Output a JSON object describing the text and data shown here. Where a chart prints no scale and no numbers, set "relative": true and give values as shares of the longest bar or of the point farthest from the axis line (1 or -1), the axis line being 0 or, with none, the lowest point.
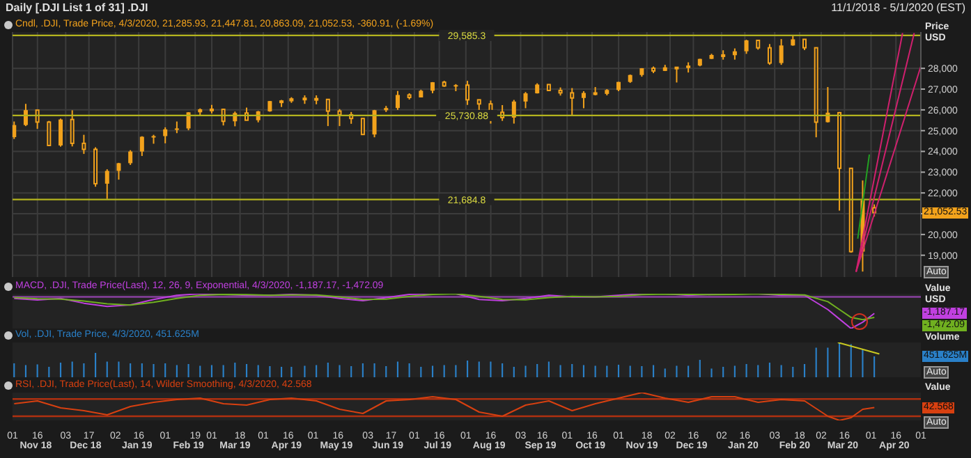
{
  "chart_data": [
    {
      "type": "candlestick",
      "title": "Daily [.DJI List 1 of 31] .DJI",
      "subtitle": "11/1/2018 - 5/1/2020 (EST)",
      "ylabel": "Price USD",
      "xlim": [
        "2018-11-01",
        "2020-05-01"
      ],
      "xticks": [
        {
          "value": "2018-11-01",
          "label": null
        },
        {
          "value": "2018-11-16",
          "label": null
        },
        {
          "value": "2018-12-03",
          "label": null
        },
        {
          "value": "2018-12-17",
          "label": null
        },
        {
          "value": "2019-01-02",
          "label": null
        },
        {
          "value": "2019-01-16",
          "label": null
        },
        {
          "value": "2019-02-01",
          "label": null
        },
        {
          "value": "2019-02-19",
          "label": null
        },
        {
          "value": "2019-03-01",
          "label": null
        },
        {
          "value": "2019-03-18",
          "label": null
        },
        {
          "value": "2019-04-01",
          "label": null
        },
        {
          "value": "2019-04-16",
          "label": null
        },
        {
          "value": "2019-05-01",
          "label": null
        },
        {
          "value": "2019-05-16",
          "label": null
        },
        {
          "value": "2019-06-03",
          "label": null
        },
        {
          "value": "2019-06-17",
          "label": null
        },
        {
          "value": "2019-07-01",
          "label": null
        },
        {
          "value": "2019-07-16",
          "label": null
        },
        {
          "value": "2019-08-01",
          "label": null
        },
        {
          "value": "2019-08-16",
          "label": null
        },
        {
          "value": "2019-09-03",
          "label": null
        },
        {
          "value": "2019-09-16",
          "label": null
        },
        {
          "value": "2019-10-01",
          "label": null
        },
        {
          "value": "2019-10-16",
          "label": null
        },
        {
          "value": "2019-11-01",
          "label": null
        },
        {
          "value": "2019-11-18",
          "label": null
        },
        {
          "value": "2019-12-02",
          "label": null
        },
        {
          "value": "2019-12-16",
          "label": null
        },
        {
          "value": "2020-01-02",
          "label": null
        },
        {
          "value": "2020-01-16",
          "label": null
        },
        {
          "value": "2020-02-03",
          "label": null
        },
        {
          "value": "2020-02-18",
          "label": null
        },
        {
          "value": "2020-03-02",
          "label": null
        },
        {
          "value": "2020-03-16",
          "label": null
        },
        {
          "value": "2020-04-01",
          "label": null
        },
        {
          "value": "2020-04-16",
          "label": null
        },
        {
          "value": "2020-05-01",
          "label": null
        }
      ],
      "ylim": [
        17950,
        29750
      ],
      "yticks": [
        {
          "value": 19000,
          "label": "19,000"
        },
        {
          "value": 20000,
          "label": "20,000"
        },
        {
          "value": 21000,
          "label": null
        },
        {
          "value": 22000,
          "label": "22,000"
        },
        {
          "value": 23000,
          "label": "23,000"
        },
        {
          "value": 24000,
          "label": "24,000"
        },
        {
          "value": 25000,
          "label": "25,000"
        },
        {
          "value": 26000,
          "label": "26,000"
        },
        {
          "value": 27000,
          "label": "27,000"
        },
        {
          "value": 28000,
          "label": "28,000"
        }
      ],
      "grid": true,
      "legend": "top left",
      "tick_labels": "y",
      "ref_lines": [
        {
          "axis": "y",
          "value": 29585.3,
          "label": "29,585.3",
          "color": "#b4b41e"
        },
        {
          "axis": "y",
          "value": 25730.88,
          "label": "25,730.88",
          "color": "#b4b41e"
        },
        {
          "axis": "y",
          "value": 21684.8,
          "label": "21,684.8",
          "color": "#b4b41e"
        }
      ],
      "annotations": [
        "Auto",
        "Auto",
        "Auto"
      ],
      "series": [
        {
          "name": "Cndl, .DJI, Trade Price, 4/3/2020, 21,285.93, 21,447.81, 20,863.09, 21,052.53, -360.91, (-1.69%)",
          "color": "#f2a21c",
          "x": [
            "2018-11-02",
            "2018-11-09",
            "2018-11-16",
            "2018-11-23",
            "2018-11-30",
            "2018-12-07",
            "2018-12-14",
            "2018-12-21",
            "2018-12-28",
            "2019-01-04",
            "2019-01-11",
            "2019-01-18",
            "2019-01-25",
            "2019-02-01",
            "2019-02-08",
            "2019-02-15",
            "2019-02-22",
            "2019-03-01",
            "2019-03-08",
            "2019-03-15",
            "2019-03-22",
            "2019-03-29",
            "2019-04-05",
            "2019-04-12",
            "2019-04-18",
            "2019-04-26",
            "2019-05-03",
            "2019-05-10",
            "2019-05-17",
            "2019-05-24",
            "2019-05-31",
            "2019-06-07",
            "2019-06-14",
            "2019-06-21",
            "2019-06-28",
            "2019-07-05",
            "2019-07-12",
            "2019-07-19",
            "2019-07-26",
            "2019-08-02",
            "2019-08-09",
            "2019-08-16",
            "2019-08-23",
            "2019-08-30",
            "2019-09-06",
            "2019-09-13",
            "2019-09-20",
            "2019-09-27",
            "2019-10-04",
            "2019-10-11",
            "2019-10-18",
            "2019-10-25",
            "2019-11-01",
            "2019-11-08",
            "2019-11-15",
            "2019-11-22",
            "2019-11-29",
            "2019-12-06",
            "2019-12-13",
            "2019-12-20",
            "2019-12-27",
            "2020-01-03",
            "2020-01-10",
            "2020-01-17",
            "2020-01-24",
            "2020-01-31",
            "2020-02-07",
            "2020-02-14",
            "2020-02-21",
            "2020-02-28",
            "2020-03-06",
            "2020-03-13",
            "2020-03-20",
            "2020-03-27",
            "2020-04-03"
          ],
          "ohlc": [
            [
              24688,
              25440,
              24600,
              25270
            ],
            [
              25270,
              26290,
              25220,
              25989
            ],
            [
              25989,
              26000,
              25090,
              25413
            ],
            [
              25413,
              25470,
              24270,
              24286
            ],
            [
              24286,
              25580,
              24230,
              25538
            ],
            [
              25538,
              25980,
              24240,
              24389
            ],
            [
              24389,
              24800,
              23880,
              24100
            ],
            [
              24100,
              24200,
              22300,
              22445
            ],
            [
              22445,
              23140,
              21712,
              23062
            ],
            [
              23062,
              23450,
              22640,
              23433
            ],
            [
              23433,
              24060,
              23350,
              23996
            ],
            [
              23996,
              24730,
              23780,
              24706
            ],
            [
              24706,
              24800,
              24370,
              24737
            ],
            [
              24737,
              25160,
              24390,
              25063
            ],
            [
              25063,
              25440,
              24880,
              25106
            ],
            [
              25106,
              25890,
              25020,
              25883
            ],
            [
              25883,
              26070,
              25750,
              26031
            ],
            [
              26031,
              26240,
              25830,
              26026
            ],
            [
              26026,
              26060,
              25250,
              25450
            ],
            [
              25450,
              25920,
              25210,
              25849
            ],
            [
              25849,
              26110,
              25500,
              25502
            ],
            [
              25502,
              25950,
              25400,
              25929
            ],
            [
              25929,
              26430,
              25910,
              26425
            ],
            [
              26425,
              26480,
              26140,
              26412
            ],
            [
              26412,
              26610,
              26340,
              26559
            ],
            [
              26559,
              26700,
              26290,
              26543
            ],
            [
              26543,
              26700,
              26270,
              26505
            ],
            [
              26505,
              26510,
              25220,
              25942
            ],
            [
              25942,
              26040,
              25220,
              25764
            ],
            [
              25764,
              25900,
              25330,
              25586
            ],
            [
              25586,
              25590,
              24800,
              24815
            ],
            [
              24815,
              26000,
              24680,
              25984
            ],
            [
              25984,
              26190,
              25900,
              26090
            ],
            [
              26090,
              26910,
              26000,
              26719
            ],
            [
              26719,
              26800,
              26500,
              26600
            ],
            [
              26600,
              26970,
              26600,
              26922
            ],
            [
              26922,
              27340,
              26800,
              27332
            ],
            [
              27332,
              27400,
              27110,
              27154
            ],
            [
              27154,
              27240,
              26900,
              27192
            ],
            [
              27192,
              27400,
              26240,
              26485
            ],
            [
              26485,
              26500,
              25750,
              26287
            ],
            [
              26287,
              26450,
              25340,
              25886
            ],
            [
              25886,
              26230,
              25470,
              25629
            ],
            [
              25629,
              26480,
              25340,
              26403
            ],
            [
              26403,
              26860,
              26080,
              26797
            ],
            [
              26797,
              27280,
              26790,
              27220
            ],
            [
              27220,
              27240,
              26900,
              26935
            ],
            [
              26935,
              27080,
              26690,
              26820
            ],
            [
              26820,
              27050,
              25740,
              26573
            ],
            [
              26573,
              26900,
              26080,
              26817
            ],
            [
              26817,
              27100,
              26700,
              26770
            ],
            [
              26770,
              27000,
              26700,
              26958
            ],
            [
              26958,
              27350,
              26900,
              27347
            ],
            [
              27347,
              27700,
              27300,
              27681
            ],
            [
              27681,
              28010,
              27600,
              28005
            ],
            [
              28005,
              28090,
              27770,
              27876
            ],
            [
              27876,
              28170,
              27870,
              28051
            ],
            [
              28051,
              28060,
              27320,
              28015
            ],
            [
              28015,
              28290,
              27800,
              28135
            ],
            [
              28135,
              28460,
              28100,
              28455
            ],
            [
              28455,
              28700,
              28450,
              28645
            ],
            [
              28645,
              28870,
              28420,
              28634
            ],
            [
              28634,
              28960,
              28420,
              28823
            ],
            [
              28823,
              29380,
              28700,
              29348
            ],
            [
              29348,
              29370,
              28900,
              28990
            ],
            [
              28990,
              29170,
              28170,
              28256
            ],
            [
              28256,
              29410,
              28170,
              29103
            ],
            [
              29103,
              29570,
              29090,
              29398
            ],
            [
              29398,
              29410,
              28880,
              28992
            ],
            [
              28992,
              29000,
              24680,
              25409
            ],
            [
              25409,
              27100,
              25390,
              25865
            ],
            [
              25865,
              25900,
              21150,
              23186
            ],
            [
              23186,
              23200,
              19120,
              19174
            ],
            [
              19174,
              22600,
              18213,
              21637
            ],
            [
              21285.93,
              21447.81,
              20863.09,
              21052.53
            ]
          ],
          "value_labels": [
            null,
            null,
            null,
            null,
            null,
            null,
            null,
            null,
            null,
            null,
            null,
            null,
            null,
            null,
            null,
            null,
            null,
            null,
            null,
            null,
            null,
            null,
            null,
            null,
            null,
            null,
            null,
            null,
            null,
            null,
            null,
            null,
            null,
            null,
            null,
            null,
            null,
            null,
            null,
            null,
            null,
            null,
            null,
            null,
            null,
            null,
            null,
            null,
            null,
            null,
            null,
            null,
            null,
            null,
            null,
            null,
            null,
            null,
            null,
            null,
            null,
            null,
            null,
            null,
            null,
            null,
            null,
            null,
            null,
            null,
            null,
            null,
            null,
            null,
            "21,052.53"
          ]
        },
        {
          "type": "line",
          "color": "#d0206e",
          "x": [
            "2020-03-23",
            "2020-04-20"
          ],
          "values": [
            18200,
            29700
          ]
        },
        {
          "type": "line",
          "color": "#d0206e",
          "x": [
            "2020-03-23",
            "2020-04-27"
          ],
          "values": [
            18200,
            29700
          ]
        },
        {
          "type": "line",
          "color": "#d0206e",
          "x": [
            "2020-03-23",
            "2020-05-01"
          ],
          "values": [
            18200,
            28100
          ]
        },
        {
          "type": "line",
          "color": "#22a022",
          "x": [
            "2020-03-24",
            "2020-03-31"
          ],
          "values": [
            19800,
            23850
          ]
        }
      ]
    },
    {
      "type": "line",
      "title": "MACD, .DJI, Trade Price(Last), 12, 26, 9, Exponential, 4/3/2020, -1,187.17, -1,472.09",
      "ylabel": "Value USD",
      "relative": true,
      "xlim": [
        "2018-11-01",
        "2020-05-01"
      ],
      "tick_labels": false,
      "ref_lines": [
        {
          "axis": "y",
          "value": 0,
          "color": "#8a40a0"
        }
      ],
      "annotations": [
        "-1,187.17",
        "-1,472.09"
      ],
      "x": [
        "2018-11-02",
        "2018-11-16",
        "2018-11-30",
        "2018-12-14",
        "2018-12-28",
        "2019-01-11",
        "2019-01-25",
        "2019-02-08",
        "2019-02-22",
        "2019-03-08",
        "2019-03-22",
        "2019-04-05",
        "2019-04-18",
        "2019-05-03",
        "2019-05-17",
        "2019-05-31",
        "2019-06-14",
        "2019-06-28",
        "2019-07-12",
        "2019-07-26",
        "2019-08-09",
        "2019-08-23",
        "2019-09-06",
        "2019-09-20",
        "2019-10-04",
        "2019-10-18",
        "2019-11-01",
        "2019-11-15",
        "2019-11-29",
        "2019-12-13",
        "2019-12-27",
        "2020-01-10",
        "2020-01-24",
        "2020-02-07",
        "2020-02-21",
        "2020-03-06",
        "2020-03-13",
        "2020-03-20",
        "2020-03-27",
        "2020-04-03"
      ],
      "series": [
        {
          "color": "#c040e0",
          "values": [
            -0.05,
            -0.1,
            -0.05,
            -0.2,
            -0.3,
            -0.25,
            -0.08,
            0.05,
            0.1,
            0.08,
            0.05,
            0.05,
            0.08,
            0.05,
            -0.05,
            -0.12,
            -0.02,
            0.08,
            0.1,
            0.1,
            -0.08,
            -0.12,
            -0.05,
            0.05,
            0,
            0,
            0.05,
            0.1,
            0.1,
            0.05,
            0.08,
            0.1,
            0.1,
            0.05,
            0.05,
            -0.4,
            -0.7,
            -1,
            -0.8,
            -0.52
          ]
        },
        {
          "color": "#70b020",
          "values": [
            -0.02,
            -0.06,
            -0.07,
            -0.13,
            -0.22,
            -0.26,
            -0.17,
            -0.05,
            0.05,
            0.08,
            0.07,
            0.05,
            0.06,
            0.06,
            0,
            -0.08,
            -0.07,
            0.02,
            0.08,
            0.1,
            0.02,
            -0.08,
            -0.09,
            -0.02,
            0.02,
            0,
            0.02,
            0.07,
            0.09,
            0.08,
            0.07,
            0.08,
            0.1,
            0.08,
            0.06,
            -0.15,
            -0.4,
            -0.65,
            -0.72,
            -0.65
          ]
        }
      ]
    },
    {
      "type": "bar",
      "title": "Vol, .DJI, Trade Price, 4/3/2020, 451.625M",
      "ylabel": "Volume",
      "relative": true,
      "xlim": [
        "2018-11-01",
        "2020-05-01"
      ],
      "tick_labels": false,
      "x": [
        "2018-11-02",
        "2018-11-09",
        "2018-11-16",
        "2018-11-23",
        "2018-11-30",
        "2018-12-07",
        "2018-12-14",
        "2018-12-21",
        "2018-12-28",
        "2019-01-04",
        "2019-01-11",
        "2019-01-18",
        "2019-01-25",
        "2019-02-01",
        "2019-02-08",
        "2019-02-15",
        "2019-02-22",
        "2019-03-01",
        "2019-03-08",
        "2019-03-15",
        "2019-03-22",
        "2019-03-29",
        "2019-04-05",
        "2019-04-12",
        "2019-04-18",
        "2019-04-26",
        "2019-05-03",
        "2019-05-10",
        "2019-05-17",
        "2019-05-24",
        "2019-05-31",
        "2019-06-07",
        "2019-06-14",
        "2019-06-21",
        "2019-06-28",
        "2019-07-05",
        "2019-07-12",
        "2019-07-19",
        "2019-07-26",
        "2019-08-02",
        "2019-08-09",
        "2019-08-16",
        "2019-08-23",
        "2019-08-30",
        "2019-09-06",
        "2019-09-13",
        "2019-09-20",
        "2019-09-27",
        "2019-10-04",
        "2019-10-11",
        "2019-10-18",
        "2019-10-25",
        "2019-11-01",
        "2019-11-08",
        "2019-11-15",
        "2019-11-22",
        "2019-11-29",
        "2019-12-06",
        "2019-12-13",
        "2019-12-20",
        "2019-12-27",
        "2020-01-03",
        "2020-01-10",
        "2020-01-17",
        "2020-01-24",
        "2020-01-31",
        "2020-02-07",
        "2020-02-14",
        "2020-02-21",
        "2020-02-28",
        "2020-03-06",
        "2020-03-13",
        "2020-03-20",
        "2020-03-27",
        "2020-04-03"
      ],
      "series": [
        {
          "color": "#2a80c8",
          "values": [
            0.4,
            0.35,
            0.37,
            0.3,
            0.42,
            0.45,
            0.4,
            0.7,
            0.45,
            0.45,
            0.4,
            0.4,
            0.38,
            0.4,
            0.35,
            0.38,
            0.33,
            0.35,
            0.35,
            0.42,
            0.38,
            0.35,
            0.32,
            0.3,
            0.3,
            0.33,
            0.35,
            0.42,
            0.35,
            0.32,
            0.4,
            0.4,
            0.32,
            0.45,
            0.4,
            0.3,
            0.33,
            0.35,
            0.35,
            0.48,
            0.45,
            0.45,
            0.4,
            0.3,
            0.33,
            0.38,
            0.45,
            0.35,
            0.38,
            0.35,
            0.33,
            0.33,
            0.36,
            0.33,
            0.32,
            0.35,
            0.25,
            0.33,
            0.33,
            0.5,
            0.25,
            0.3,
            0.33,
            0.38,
            0.35,
            0.42,
            0.35,
            0.3,
            0.38,
            0.85,
            0.85,
            1,
            0.95,
            0.8,
            0.6
          ]
        },
        {
          "type": "line",
          "color": "#c8c820",
          "x": [
            "2020-03-12",
            "2020-04-06"
          ],
          "values": [
            1,
            0.67
          ]
        }
      ],
      "annotations": [
        "451.625M"
      ]
    },
    {
      "type": "line",
      "title": "RSI, .DJI, Trade Price(Last), 14, Wilder Smoothing, 4/3/2020, 42.568",
      "ylabel": "Value",
      "relative": true,
      "xlim": [
        "2018-11-01",
        "2020-05-01"
      ],
      "tick_labels": "x",
      "xticks": [
        {
          "value": "2018-11-01",
          "label": "01"
        },
        {
          "value": "2018-11-16",
          "label": "16"
        },
        {
          "value": "2018-12-03",
          "label": "03"
        },
        {
          "value": "2018-12-17",
          "label": "17"
        },
        {
          "value": "2019-01-02",
          "label": "02"
        },
        {
          "value": "2019-01-16",
          "label": "16"
        },
        {
          "value": "2019-02-01",
          "label": "01"
        },
        {
          "value": "2019-02-19",
          "label": "19"
        },
        {
          "value": "2019-03-01",
          "label": "01"
        },
        {
          "value": "2019-03-18",
          "label": "18"
        },
        {
          "value": "2019-04-01",
          "label": "01"
        },
        {
          "value": "2019-04-16",
          "label": "16"
        },
        {
          "value": "2019-05-01",
          "label": "01"
        },
        {
          "value": "2019-05-16",
          "label": "16"
        },
        {
          "value": "2019-06-03",
          "label": "03"
        },
        {
          "value": "2019-06-17",
          "label": "17"
        },
        {
          "value": "2019-07-01",
          "label": "01"
        },
        {
          "value": "2019-07-16",
          "label": "16"
        },
        {
          "value": "2019-08-01",
          "label": "01"
        },
        {
          "value": "2019-08-16",
          "label": "16"
        },
        {
          "value": "2019-09-03",
          "label": "03"
        },
        {
          "value": "2019-09-16",
          "label": "16"
        },
        {
          "value": "2019-10-01",
          "label": "01"
        },
        {
          "value": "2019-10-16",
          "label": "16"
        },
        {
          "value": "2019-11-01",
          "label": "01"
        },
        {
          "value": "2019-11-18",
          "label": "18"
        },
        {
          "value": "2019-12-02",
          "label": "02"
        },
        {
          "value": "2019-12-16",
          "label": "16"
        },
        {
          "value": "2020-01-02",
          "label": "02"
        },
        {
          "value": "2020-01-16",
          "label": "16"
        },
        {
          "value": "2020-02-03",
          "label": "03"
        },
        {
          "value": "2020-02-18",
          "label": "18"
        },
        {
          "value": "2020-03-02",
          "label": "02"
        },
        {
          "value": "2020-03-16",
          "label": "16"
        },
        {
          "value": "2020-04-01",
          "label": "01"
        },
        {
          "value": "2020-04-16",
          "label": "16"
        },
        {
          "value": "2020-05-01",
          "label": "01"
        }
      ],
      "x": [
        "2018-11-02",
        "2018-11-16",
        "2018-11-30",
        "2018-12-14",
        "2018-12-28",
        "2019-01-11",
        "2019-01-25",
        "2019-02-08",
        "2019-02-22",
        "2019-03-08",
        "2019-03-22",
        "2019-04-05",
        "2019-04-18",
        "2019-05-03",
        "2019-05-17",
        "2019-05-31",
        "2019-06-14",
        "2019-06-28",
        "2019-07-12",
        "2019-07-26",
        "2019-08-09",
        "2019-08-23",
        "2019-09-06",
        "2019-09-20",
        "2019-10-04",
        "2019-10-18",
        "2019-11-01",
        "2019-11-15",
        "2019-11-29",
        "2019-12-13",
        "2019-12-27",
        "2020-01-10",
        "2020-01-24",
        "2020-02-07",
        "2020-02-21",
        "2020-03-06",
        "2020-03-13",
        "2020-03-20",
        "2020-03-27",
        "2020-04-03"
      ],
      "series": [
        {
          "color": "#d84010",
          "values": [
            0.6,
            0.7,
            0.45,
            0.35,
            0.2,
            0.5,
            0.65,
            0.75,
            0.8,
            0.6,
            0.55,
            0.75,
            0.8,
            0.7,
            0.4,
            0.25,
            0.7,
            0.75,
            0.85,
            0.75,
            0.3,
            0.15,
            0.55,
            0.7,
            0.35,
            0.6,
            0.8,
            1,
            0.8,
            0.65,
            0.85,
            0.85,
            0.65,
            0.75,
            0.7,
            0.15,
            0,
            0.1,
            0.4,
            0.46
          ]
        }
      ],
      "ref_lines": [
        {
          "axis": "y",
          "value": 0.77,
          "color": "#b03010"
        },
        {
          "axis": "y",
          "value": 0.15,
          "color": "#b03010"
        }
      ],
      "annotations": [
        "Nov 18",
        "Dec 18",
        "Jan 19",
        "Feb 19",
        "Mar 19",
        "Apr 19",
        "May 19",
        "Jun 19",
        "Jul 19",
        "Aug 19",
        "Sep 19",
        "Oct 19",
        "Nov 19",
        "Dec 19",
        "Jan 20",
        "Feb 20",
        "Mar 20",
        "Apr 20",
        "42.568"
      ]
    }
  ]
}
